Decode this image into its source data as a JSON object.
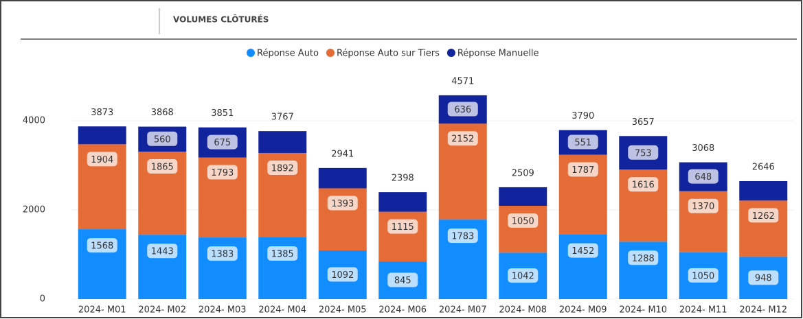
{
  "header": {
    "title": "VOLUMES CLÔTURÉS"
  },
  "chart_data": {
    "type": "stacked_bar",
    "categories": [
      "2024- M01",
      "2024- M02",
      "2024- M03",
      "2024- M04",
      "2024- M05",
      "2024- M06",
      "2024- M07",
      "2024- M08",
      "2024- M09",
      "2024- M10",
      "2024- M11",
      "2024- M12"
    ],
    "series": [
      {
        "name": "Réponse Auto",
        "color": "#118dff",
        "values": [
          1568,
          1443,
          1383,
          1385,
          1092,
          845,
          1783,
          1042,
          1452,
          1288,
          1050,
          948
        ]
      },
      {
        "name": "Réponse Auto sur Tiers",
        "color": "#e66c37",
        "values": [
          1904,
          1865,
          1793,
          1892,
          1393,
          1115,
          2152,
          1050,
          1787,
          1616,
          1370,
          1262
        ]
      },
      {
        "name": "Réponse Manuelle",
        "color": "#12239e",
        "values": [
          401,
          560,
          675,
          490,
          456,
          438,
          636,
          417,
          551,
          753,
          648,
          436
        ],
        "value_labels": [
          null,
          "560",
          "675",
          null,
          null,
          null,
          "636",
          null,
          "551",
          "753",
          "648",
          null
        ]
      }
    ],
    "totals": [
      3873,
      3868,
      3851,
      3767,
      2941,
      2398,
      4571,
      2509,
      3790,
      3657,
      3068,
      2646
    ],
    "ylim": [
      0,
      5000
    ],
    "yticks": [
      0,
      2000,
      4000
    ],
    "grid": true,
    "legend": "top"
  }
}
